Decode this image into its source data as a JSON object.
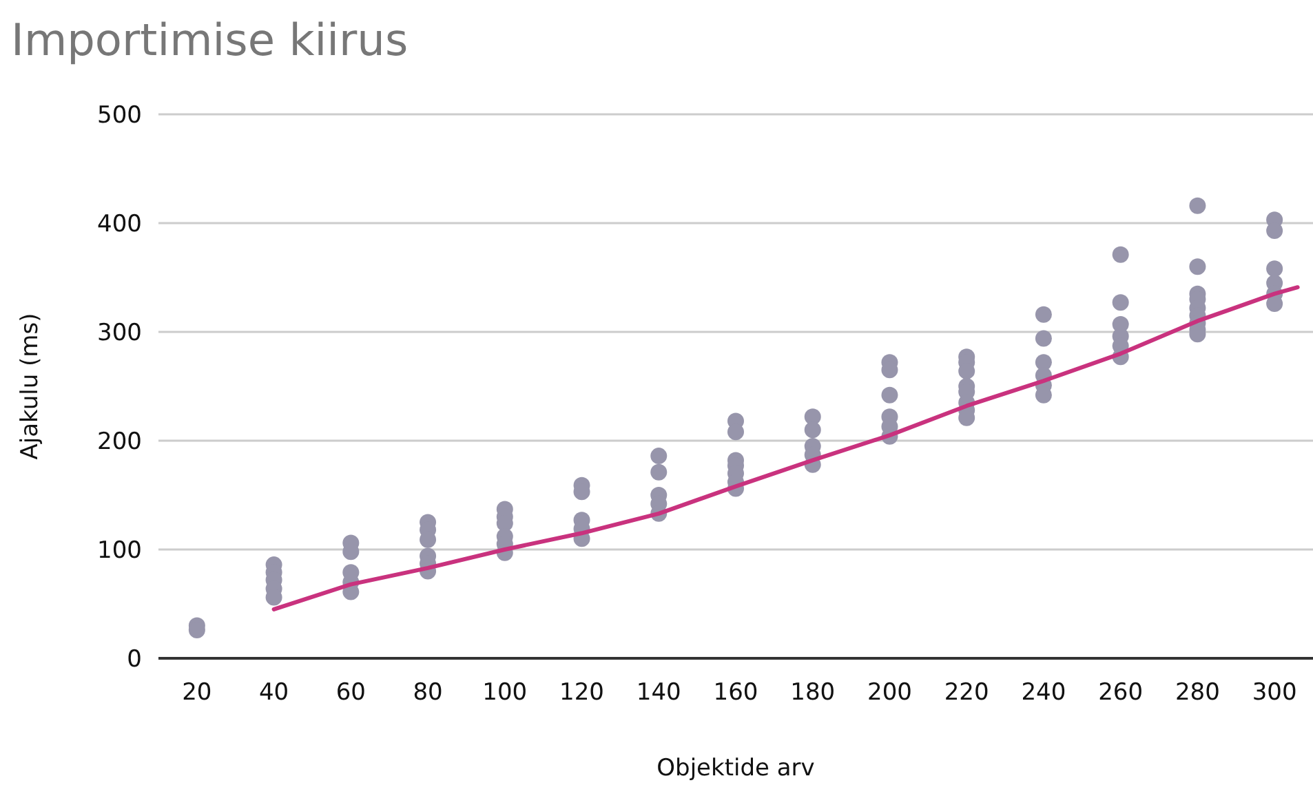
{
  "chart_data": {
    "type": "scatter",
    "title": "Importimise kiirus",
    "xlabel": "Objektide arv",
    "ylabel": "Ajakulu (ms)",
    "xlim": [
      10,
      310
    ],
    "xticks": [
      20,
      40,
      60,
      80,
      100,
      120,
      140,
      160,
      180,
      200,
      220,
      240,
      260,
      280,
      300
    ],
    "ylim": [
      0,
      500
    ],
    "yticks": [
      0,
      100,
      200,
      300,
      400,
      500
    ],
    "grid": "y",
    "marker": "circle",
    "series": [
      {
        "color": "#9795ab",
        "x": [
          20,
          20,
          40,
          40,
          40,
          40,
          40,
          60,
          60,
          60,
          60,
          60,
          80,
          80,
          80,
          80,
          80,
          80,
          100,
          100,
          100,
          100,
          100,
          100,
          120,
          120,
          120,
          120,
          120,
          140,
          140,
          140,
          140,
          140,
          160,
          160,
          160,
          160,
          160,
          160,
          160,
          180,
          180,
          180,
          180,
          180,
          200,
          200,
          200,
          200,
          200,
          200,
          220,
          220,
          220,
          220,
          220,
          220,
          220,
          220,
          240,
          240,
          240,
          240,
          240,
          240,
          260,
          260,
          260,
          260,
          260,
          260,
          280,
          280,
          280,
          280,
          280,
          280,
          280,
          280,
          280,
          300,
          300,
          300,
          300,
          300,
          300
        ],
        "values": [
          30,
          26,
          86,
          79,
          72,
          64,
          56,
          106,
          98,
          79,
          70,
          61,
          125,
          118,
          109,
          94,
          87,
          80,
          137,
          130,
          124,
          112,
          105,
          97,
          159,
          153,
          127,
          119,
          110,
          186,
          171,
          150,
          142,
          133,
          218,
          208,
          182,
          177,
          170,
          162,
          156,
          222,
          210,
          195,
          187,
          178,
          272,
          265,
          242,
          222,
          213,
          204,
          277,
          272,
          264,
          250,
          245,
          235,
          228,
          221,
          316,
          294,
          272,
          260,
          251,
          242,
          371,
          327,
          307,
          296,
          287,
          277,
          416,
          360,
          335,
          330,
          322,
          315,
          308,
          302,
          298,
          403,
          393,
          358,
          345,
          335,
          326
        ]
      },
      {
        "type": "line",
        "color": "#c9327e",
        "line_style": "solid",
        "marker": "none",
        "x": [
          40,
          60,
          80,
          100,
          120,
          140,
          160,
          180,
          200,
          220,
          240,
          260,
          280,
          300,
          306
        ],
        "values": [
          45,
          68,
          83,
          100,
          115,
          133,
          158,
          182,
          205,
          232,
          255,
          280,
          310,
          335,
          341
        ]
      }
    ]
  }
}
